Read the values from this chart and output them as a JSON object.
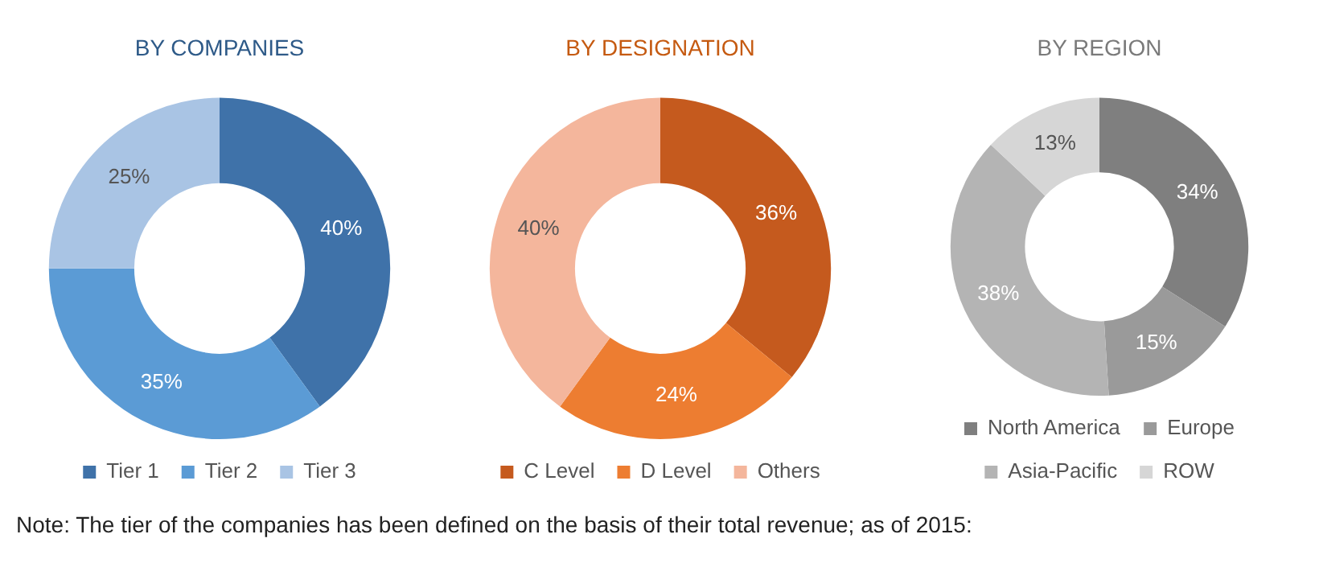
{
  "chart_data": [
    {
      "type": "donut",
      "title": "BY COMPANIES",
      "categories": [
        "Tier 1",
        "Tier 2",
        "Tier 3"
      ],
      "values": [
        40,
        35,
        25
      ],
      "colors": [
        "#3f72a9",
        "#5b9bd5",
        "#a9c4e4"
      ],
      "value_labels": [
        "40%",
        "35%",
        "25%"
      ],
      "legend": "bottom",
      "annotations": [
        "Note: The tier of the companies has been defined on the basis of their total revenue; as of 2015:"
      ]
    },
    {
      "type": "donut",
      "title": "BY DESIGNATION",
      "categories": [
        "C Level",
        "D Level",
        "Others"
      ],
      "values": [
        36,
        24,
        40
      ],
      "colors": [
        "#c55a1e",
        "#ed7d31",
        "#f4b69c"
      ],
      "value_labels": [
        "36%",
        "24%",
        "40%"
      ],
      "legend": "bottom"
    },
    {
      "type": "donut",
      "title": "BY REGION",
      "categories": [
        "North America",
        "Europe",
        "Asia-Pacific",
        "ROW"
      ],
      "values": [
        34,
        15,
        38,
        13
      ],
      "colors": [
        "#7f7f7f",
        "#9a9a9a",
        "#b4b4b4",
        "#d6d6d6"
      ],
      "value_labels": [
        "34%",
        "15%",
        "38%",
        "13%"
      ],
      "legend": "bottom"
    }
  ]
}
